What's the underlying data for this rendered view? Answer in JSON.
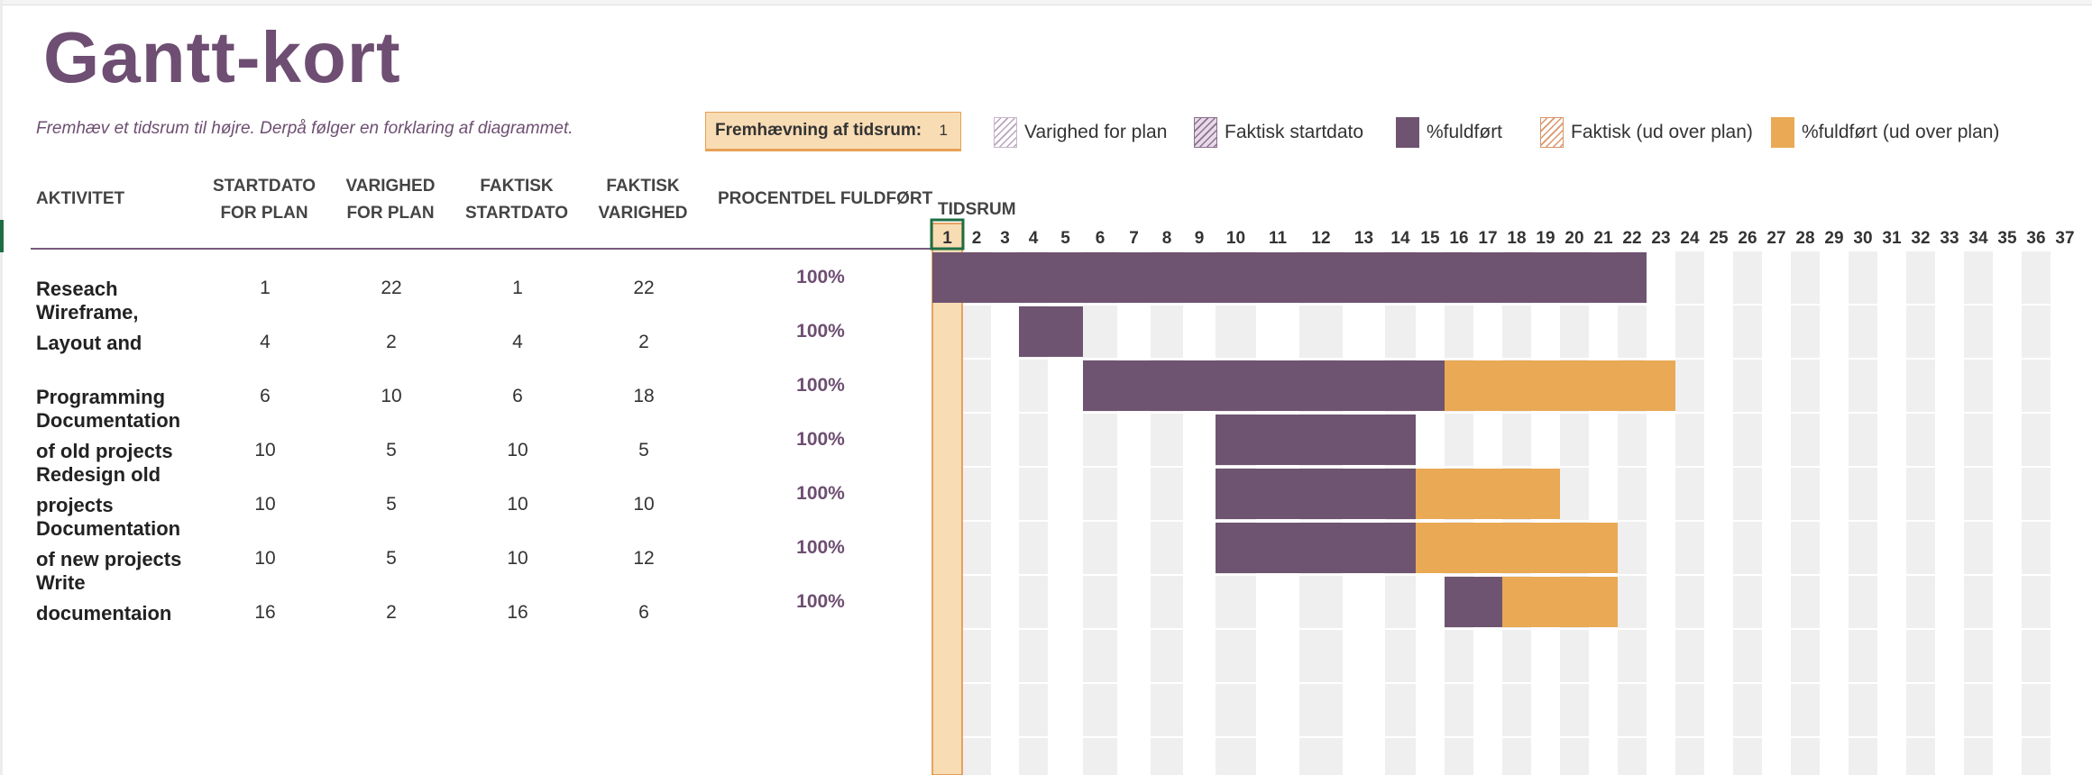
{
  "title": "Gantt-kort",
  "subtitle": "Fremhæv et tidsrum til højre.  Derpå følger en forklaring af diagrammet.",
  "highlight": {
    "label": "Fremhævning af tidsrum:",
    "value": "1"
  },
  "legend": [
    {
      "label": "Varighed for plan",
      "icon": "plan-duration-swatch"
    },
    {
      "label": "Faktisk startdato",
      "icon": "actual-start-swatch"
    },
    {
      "label": "%fuldført",
      "icon": "percent-complete-swatch"
    },
    {
      "label": "Faktisk (ud over plan)",
      "icon": "actual-beyond-plan-swatch"
    },
    {
      "label": "%fuldført (ud over plan)",
      "icon": "percent-complete-beyond-swatch"
    }
  ],
  "columns": {
    "activity": "AKTIVITET",
    "plan_start": [
      "STARTDATO",
      "FOR PLAN"
    ],
    "plan_duration": [
      "VARIGHED",
      "FOR PLAN"
    ],
    "actual_start": [
      "FAKTISK",
      "STARTDATO"
    ],
    "actual_duration": [
      "FAKTISK",
      "VARIGHED"
    ],
    "percent": "PROCENTDEL FULDFØRT",
    "period": "TIDSRUM"
  },
  "tasks": [
    {
      "name": [
        "Reseach"
      ],
      "plan_start": "1",
      "plan_duration": "22",
      "actual_start": "1",
      "actual_duration": "22",
      "percent": "100%"
    },
    {
      "name": [
        "Wireframe,",
        "Layout and"
      ],
      "plan_start": "4",
      "plan_duration": "2",
      "actual_start": "4",
      "actual_duration": "2",
      "percent": "100%"
    },
    {
      "name": [
        "Programming"
      ],
      "plan_start": "6",
      "plan_duration": "10",
      "actual_start": "6",
      "actual_duration": "18",
      "percent": "100%"
    },
    {
      "name": [
        "Documentation",
        "of old projects"
      ],
      "plan_start": "10",
      "plan_duration": "5",
      "actual_start": "10",
      "actual_duration": "5",
      "percent": "100%"
    },
    {
      "name": [
        "Redesign old",
        "projects"
      ],
      "plan_start": "10",
      "plan_duration": "5",
      "actual_start": "10",
      "actual_duration": "10",
      "percent": "100%"
    },
    {
      "name": [
        "Documentation",
        "of new projects"
      ],
      "plan_start": "10",
      "plan_duration": "5",
      "actual_start": "10",
      "actual_duration": "12",
      "percent": "100%"
    },
    {
      "name": [
        "Write",
        "documentaion"
      ],
      "plan_start": "16",
      "plan_duration": "2",
      "actual_start": "16",
      "actual_duration": "6",
      "percent": "100%"
    }
  ],
  "timeline": {
    "days": [
      "1",
      "2",
      "3",
      "4",
      "5",
      "6",
      "7",
      "8",
      "9",
      "10",
      "11",
      "12",
      "13",
      "14",
      "15",
      "16",
      "17",
      "18",
      "19",
      "20",
      "21",
      "22",
      "23",
      "24",
      "25",
      "26",
      "27",
      "28",
      "29",
      "30",
      "31",
      "32",
      "33",
      "34",
      "35",
      "36",
      "37"
    ],
    "highlighted_day": 1
  },
  "colors": {
    "title": "#6e4e72",
    "complete": "#6e5470",
    "beyond_plan": "#e9a955",
    "highlight": "#f8dcb4",
    "grid_shade": "#efefef"
  }
}
